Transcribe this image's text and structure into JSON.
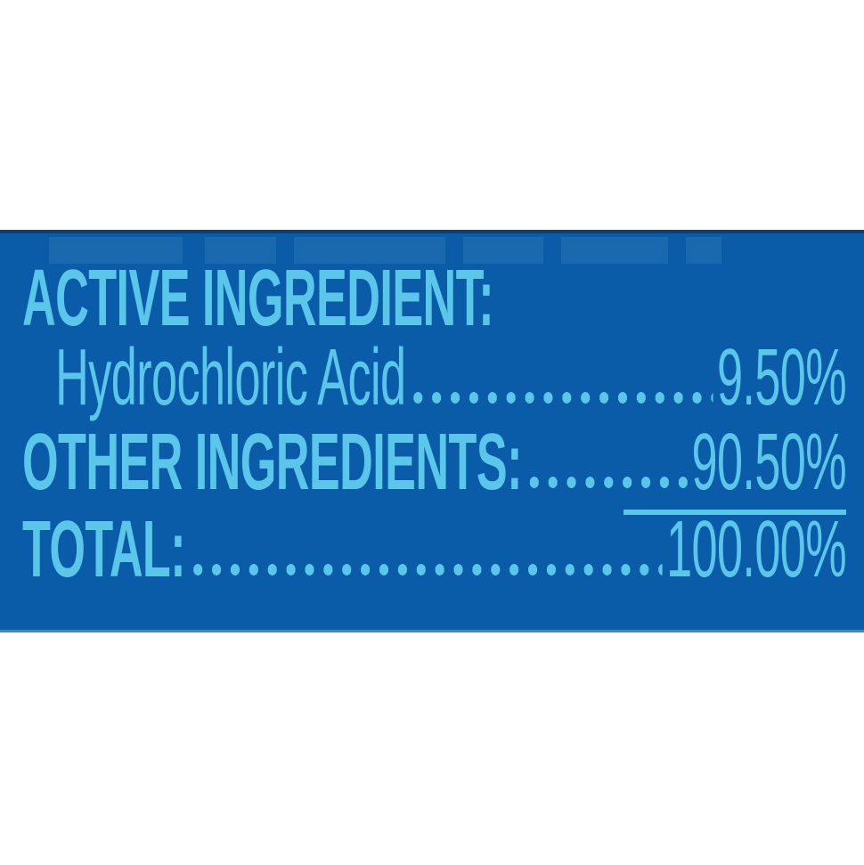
{
  "panel": {
    "colors": {
      "panel_background": "#0a5ca9",
      "panel_top_edge": "#1a3c63",
      "panel_bottom_edge": "#4d82b0",
      "text": "#5bc6e9",
      "page_background": "#ffffff"
    },
    "heading": "ACTIVE INGREDIENT:",
    "ingredient_row": {
      "label": "Hydrochloric Acid",
      "value": "9.50%"
    },
    "other_row": {
      "label": "OTHER INGREDIENTS:",
      "value": "90.50%"
    },
    "total_row": {
      "label": "TOTAL:",
      "value": "100.00%"
    }
  }
}
